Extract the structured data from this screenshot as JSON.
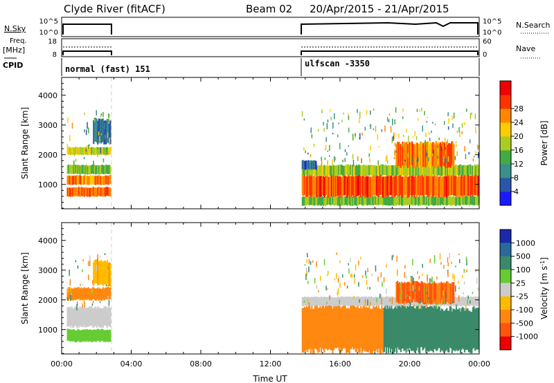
{
  "header": {
    "title": "Clyde River (fitACF)",
    "beam": "Beam 02",
    "date_range": "20/Apr/2015 - 21/Apr/2015"
  },
  "strip_nsky": {
    "left_label": "N.Sky",
    "right_label": "N.Search",
    "left_ticks": [
      "10^5",
      "10^0"
    ],
    "right_ticks": [
      "10^5",
      "10^0"
    ]
  },
  "strip_freq": {
    "left_label_1": "Freq.",
    "left_label_2": "[MHz]",
    "right_label": "Nave",
    "left_ticks": [
      "18",
      "8"
    ],
    "right_ticks": [
      "60",
      "0"
    ]
  },
  "strip_cpid": {
    "label": "CPID",
    "mode_1": "normal (fast) 151",
    "mode_2": "ulfscan -3350"
  },
  "x_axis": {
    "title": "Time UT",
    "ticks": [
      "00:00",
      "04:00",
      "08:00",
      "12:00",
      "16:00",
      "20:00",
      "00:00"
    ]
  },
  "chart_data": [
    {
      "type": "heatmap",
      "title": "",
      "xlabel": "Time UT",
      "ylabel": "Slant Range [km]",
      "xlim_hours": [
        0,
        24
      ],
      "ylim_km": [
        180,
        4600
      ],
      "y_ticks": [
        1000,
        2000,
        3000,
        4000
      ],
      "colorbar": {
        "label": "Power [dB]",
        "ticks": [
          "4",
          "8",
          "12",
          "16",
          "20",
          "24",
          "28"
        ],
        "colors": [
          "#1a1aff",
          "#2a55a8",
          "#3a8f8a",
          "#44aa44",
          "#aacc22",
          "#ffcc00",
          "#ff8800",
          "#ff3300",
          "#ee0000"
        ]
      },
      "bands": [
        {
          "t0": 0.3,
          "t1": 2.8,
          "r0": 600,
          "r1": 900,
          "value": 26
        },
        {
          "t0": 0.3,
          "t1": 2.8,
          "r0": 1000,
          "r1": 1300,
          "value": 24
        },
        {
          "t0": 0.3,
          "t1": 2.8,
          "r0": 1350,
          "r1": 1650,
          "value": 14
        },
        {
          "t0": 0.3,
          "t1": 2.8,
          "r0": 2000,
          "r1": 2250,
          "value": 17
        },
        {
          "t0": 1.8,
          "t1": 2.8,
          "r0": 2400,
          "r1": 3200,
          "value": 6
        },
        {
          "t0": 13.8,
          "t1": 24.0,
          "r0": 300,
          "r1": 600,
          "value": 14
        },
        {
          "t0": 13.8,
          "t1": 24.0,
          "r0": 600,
          "r1": 1300,
          "value": 27
        },
        {
          "t0": 13.8,
          "t1": 24.0,
          "r0": 1300,
          "r1": 1650,
          "value": 16
        },
        {
          "t0": 13.8,
          "t1": 14.6,
          "r0": 1500,
          "r1": 1800,
          "value": 5
        },
        {
          "t0": 19.2,
          "t1": 22.5,
          "r0": 1600,
          "r1": 2400,
          "value": 25
        }
      ]
    },
    {
      "type": "heatmap",
      "title": "",
      "xlabel": "Time UT",
      "ylabel": "Slant Range [km]",
      "xlim_hours": [
        0,
        24
      ],
      "ylim_km": [
        180,
        4600
      ],
      "y_ticks": [
        1000,
        2000,
        3000,
        4000
      ],
      "colorbar": {
        "label": "Velocity [m s^-1]",
        "ticks": [
          "1000",
          "500",
          "100",
          "25",
          "-25",
          "-100",
          "-500",
          "-1000"
        ],
        "colors": [
          "#1a2aaa",
          "#2a6a9a",
          "#3a8a6a",
          "#66cc33",
          "#cccccc",
          "#ffbb00",
          "#ff8811",
          "#ff5511",
          "#ee0000"
        ]
      },
      "bands": [
        {
          "t0": 0.3,
          "t1": 2.8,
          "r0": 600,
          "r1": 1000,
          "value": 60
        },
        {
          "t0": 0.3,
          "t1": 2.8,
          "r0": 1100,
          "r1": 1750,
          "value": 0
        },
        {
          "t0": 0.3,
          "t1": 2.8,
          "r0": 2000,
          "r1": 2400,
          "value": -200
        },
        {
          "t0": 1.8,
          "t1": 2.8,
          "r0": 2500,
          "r1": 3300,
          "value": -80
        },
        {
          "t0": 13.8,
          "t1": 18.5,
          "r0": 300,
          "r1": 1800,
          "value": -300
        },
        {
          "t0": 18.5,
          "t1": 21.5,
          "r0": 300,
          "r1": 1800,
          "value": 200
        },
        {
          "t0": 21.5,
          "t1": 24.0,
          "r0": 300,
          "r1": 1700,
          "value": 300
        },
        {
          "t0": 13.8,
          "t1": 24.0,
          "r0": 1800,
          "r1": 2100,
          "value": 0
        },
        {
          "t0": 19.2,
          "t1": 22.5,
          "r0": 1900,
          "r1": 2600,
          "value": -600
        }
      ]
    }
  ]
}
